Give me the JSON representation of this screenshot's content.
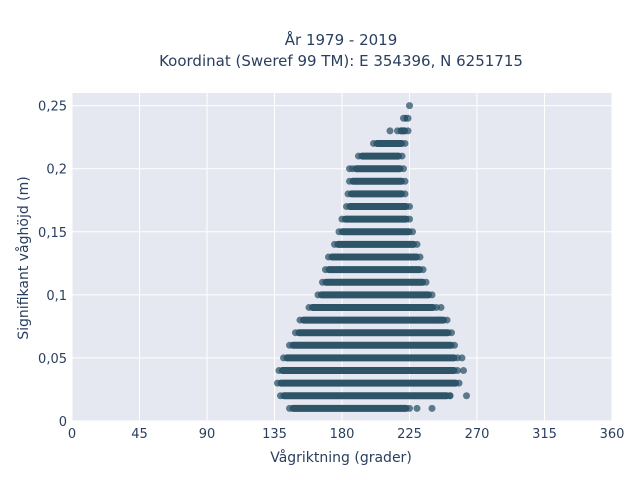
{
  "chart_data": {
    "type": "scatter",
    "title_line1": "År 1979 - 2019",
    "title_line2": "Koordinat (Sweref 99 TM): E 354396, N 6251715",
    "xlabel": "Vågriktning (grader)",
    "ylabel": "Signifikant våghöjd (m)",
    "xlim": [
      0,
      360
    ],
    "ylim": [
      0,
      0.26
    ],
    "x_ticks": [
      0,
      45,
      90,
      135,
      180,
      225,
      270,
      315,
      360
    ],
    "x_tick_labels": [
      "0",
      "45",
      "90",
      "135",
      "180",
      "225",
      "270",
      "315",
      "360"
    ],
    "y_ticks": [
      0,
      0.05,
      0.1,
      0.15,
      0.2,
      0.25
    ],
    "y_tick_labels": [
      "0",
      "0,05",
      "0,1",
      "0,15",
      "0,2",
      "0,25"
    ],
    "grid": true,
    "marker_color": "#2e5468",
    "plot_background": "#e5e8f1",
    "bands": [
      {
        "y": 0.01,
        "x_min": 145,
        "x_max": 225
      },
      {
        "y": 0.02,
        "x_min": 139,
        "x_max": 252
      },
      {
        "y": 0.03,
        "x_min": 137,
        "x_max": 258
      },
      {
        "y": 0.04,
        "x_min": 138,
        "x_max": 257
      },
      {
        "y": 0.05,
        "x_min": 141,
        "x_max": 257
      },
      {
        "y": 0.06,
        "x_min": 145,
        "x_max": 255
      },
      {
        "y": 0.07,
        "x_min": 149,
        "x_max": 253
      },
      {
        "y": 0.08,
        "x_min": 152,
        "x_max": 250
      },
      {
        "y": 0.09,
        "x_min": 158,
        "x_max": 243
      },
      {
        "y": 0.1,
        "x_min": 164,
        "x_max": 240
      },
      {
        "y": 0.11,
        "x_min": 167,
        "x_max": 236
      },
      {
        "y": 0.12,
        "x_min": 169,
        "x_max": 234
      },
      {
        "y": 0.13,
        "x_min": 171,
        "x_max": 232
      },
      {
        "y": 0.14,
        "x_min": 175,
        "x_max": 230
      },
      {
        "y": 0.15,
        "x_min": 178,
        "x_max": 227
      },
      {
        "y": 0.16,
        "x_min": 180,
        "x_max": 225
      },
      {
        "y": 0.17,
        "x_min": 183,
        "x_max": 225
      },
      {
        "y": 0.18,
        "x_min": 184,
        "x_max": 222
      },
      {
        "y": 0.19,
        "x_min": 185,
        "x_max": 222
      },
      {
        "y": 0.2,
        "x_min": 187,
        "x_max": 221
      },
      {
        "y": 0.21,
        "x_min": 191,
        "x_max": 220
      },
      {
        "y": 0.22,
        "x_min": 201,
        "x_max": 222
      },
      {
        "y": 0.23,
        "x_min": 217,
        "x_max": 224
      },
      {
        "y": 0.24,
        "x_min": 221,
        "x_max": 224
      }
    ],
    "outliers": [
      {
        "x": 225,
        "y": 0.25
      },
      {
        "x": 212,
        "y": 0.23
      },
      {
        "x": 185,
        "y": 0.2
      },
      {
        "x": 246,
        "y": 0.09
      },
      {
        "x": 245,
        "y": 0.08
      },
      {
        "x": 260,
        "y": 0.05
      },
      {
        "x": 261,
        "y": 0.04
      },
      {
        "x": 263,
        "y": 0.02
      },
      {
        "x": 252,
        "y": 0.02
      },
      {
        "x": 240,
        "y": 0.01
      },
      {
        "x": 230,
        "y": 0.01
      }
    ]
  }
}
